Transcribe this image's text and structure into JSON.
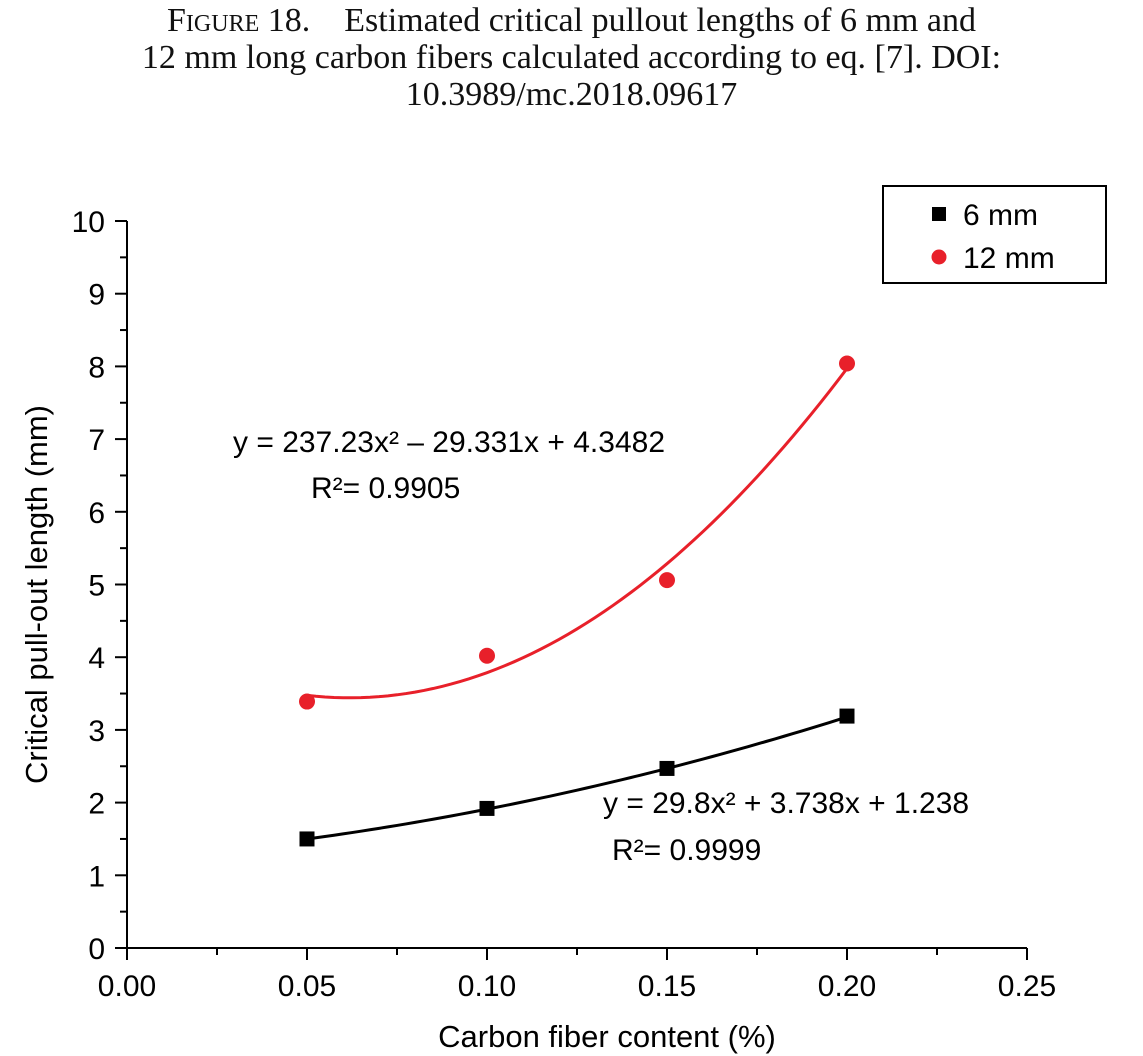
{
  "caption": {
    "figure_label": "Figure 18.",
    "line1": "Estimated critical pullout lengths of 6 mm and",
    "line2": "12 mm long carbon fibers calculated according to eq. [7]. DOI:",
    "line3": "10.3989/mc.2018.09617"
  },
  "chart_data": {
    "type": "scatter",
    "xlabel": "Carbon fiber content (%)",
    "ylabel": "Critical pull-out length (mm)",
    "xlim": [
      0,
      0.25
    ],
    "ylim": [
      0,
      10
    ],
    "x_ticks": [
      "0.00",
      "0.05",
      "0.10",
      "0.15",
      "0.20",
      "0.25"
    ],
    "y_ticks": [
      "0",
      "1",
      "2",
      "3",
      "4",
      "5",
      "6",
      "7",
      "8",
      "9",
      "10"
    ],
    "legend_position": "top-right",
    "grid": false,
    "series": [
      {
        "name": "6 mm",
        "marker": "square",
        "color": "#000000",
        "x": [
          0.05,
          0.1,
          0.15,
          0.2
        ],
        "y": [
          1.5,
          1.92,
          2.47,
          3.19
        ],
        "fit": {
          "a": 29.8,
          "b": 3.738,
          "c": 1.238
        },
        "equation": "y = 29.8x² + 3.738x + 1.238",
        "r2_label": "R²= 0.9999"
      },
      {
        "name": "12 mm",
        "marker": "circle",
        "color": "#e8202a",
        "x": [
          0.05,
          0.1,
          0.15,
          0.2
        ],
        "y": [
          3.39,
          4.02,
          5.06,
          8.04
        ],
        "fit": {
          "a": 237.23,
          "b": -29.331,
          "c": 4.3482
        },
        "equation": "y = 237.23x² – 29.331x + 4.3482",
        "r2_label": "R²= 0.9905"
      }
    ]
  }
}
